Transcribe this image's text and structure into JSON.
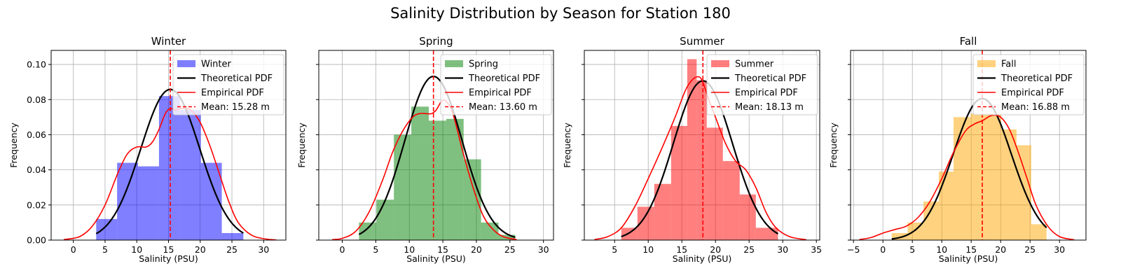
{
  "figure": {
    "title": "Salinity Distribution by Season for Station 180"
  },
  "chart_data": [
    {
      "type": "bar",
      "title": "Winter",
      "xlabel": "Salinity (PSU)",
      "ylabel": "Frequency",
      "xlim": [
        -3.5,
        33.5
      ],
      "ylim": [
        0,
        0.108
      ],
      "xticks": [
        "0",
        "5",
        "10",
        "15",
        "20",
        "25",
        "30"
      ],
      "yticks": [
        "0.00",
        "0.02",
        "0.04",
        "0.06",
        "0.08",
        "0.10"
      ],
      "grid": true,
      "legend_position": "top-right",
      "hist_color": "#0000ff",
      "mean": 15.28,
      "bin_edges": [
        3.6,
        6.9,
        10.2,
        13.5,
        16.8,
        20.1,
        23.4,
        26.8
      ],
      "hist_values": [
        0.012,
        0.044,
        0.042,
        0.082,
        0.074,
        0.044,
        0.004
      ],
      "theoretical_pdf": {
        "mean": 15.28,
        "std": 4.65,
        "range": [
          3.6,
          26.8
        ]
      },
      "empirical_pdf": {
        "x": [
          -1.5,
          1,
          3,
          5,
          7,
          8.5,
          10,
          11.5,
          12.5,
          13.5,
          14.5,
          15.3,
          16,
          17,
          18.5,
          20,
          21.5,
          23,
          24.5,
          26,
          28,
          30,
          32
        ],
        "y": [
          0.0003,
          0.002,
          0.008,
          0.02,
          0.038,
          0.049,
          0.053,
          0.053,
          0.056,
          0.063,
          0.072,
          0.075,
          0.074,
          0.075,
          0.074,
          0.067,
          0.054,
          0.038,
          0.022,
          0.01,
          0.003,
          0.0008,
          0.0001
        ]
      },
      "legend": [
        "Winter",
        "Theoretical PDF",
        "Empirical PDF",
        "Mean: 15.28 m"
      ]
    },
    {
      "type": "bar",
      "title": "Spring",
      "xlabel": "Salinity (PSU)",
      "ylabel": "Frequency",
      "xlim": [
        -3.5,
        31.5
      ],
      "ylim": [
        0,
        0.108
      ],
      "xticks": [
        "0",
        "5",
        "10",
        "15",
        "20",
        "25",
        "30"
      ],
      "yticks": [],
      "grid": true,
      "legend_position": "top-right",
      "hist_color": "#008000",
      "mean": 13.6,
      "bin_edges": [
        2.5,
        5.1,
        7.7,
        10.3,
        12.9,
        15.5,
        18.1,
        20.7,
        23.3,
        25.8
      ],
      "hist_values": [
        0.01,
        0.023,
        0.06,
        0.076,
        0.068,
        0.069,
        0.046,
        0.01,
        0.003
      ],
      "theoretical_pdf": {
        "mean": 13.6,
        "std": 4.28,
        "range": [
          2.5,
          25.8
        ]
      },
      "empirical_pdf": {
        "x": [
          -1.5,
          0,
          2,
          4,
          6,
          7.5,
          9,
          10.5,
          11.5,
          12.5,
          13.3,
          14,
          14.8,
          15.5,
          16.5,
          18,
          19.5,
          21,
          22.5,
          24,
          26
        ],
        "y": [
          0.0003,
          0.001,
          0.005,
          0.016,
          0.034,
          0.05,
          0.062,
          0.07,
          0.072,
          0.072,
          0.072,
          0.074,
          0.079,
          0.079,
          0.072,
          0.05,
          0.03,
          0.014,
          0.006,
          0.002,
          0.0003
        ]
      },
      "legend": [
        "Spring",
        "Theoretical PDF",
        "Empirical PDF",
        "Mean: 13.60 m"
      ]
    },
    {
      "type": "bar",
      "title": "Summer",
      "xlabel": "Salinity (PSU)",
      "ylabel": "Frequency",
      "xlim": [
        0.5,
        35.5
      ],
      "ylim": [
        0,
        0.108
      ],
      "xticks": [
        "5",
        "10",
        "15",
        "20",
        "25",
        "30",
        "35"
      ],
      "yticks": [],
      "grid": true,
      "legend_position": "top-right",
      "hist_color": "#ff0000",
      "mean": 18.13,
      "bin_edges": [
        6,
        8.4,
        10.9,
        13.4,
        15.8,
        17.2,
        18.7,
        21.1,
        23.6,
        26.0,
        29.3
      ],
      "hist_values": [
        0.007,
        0.019,
        0.032,
        0.065,
        0.103,
        0.091,
        0.064,
        0.045,
        0.026,
        0.007
      ],
      "theoretical_pdf": {
        "mean": 18.13,
        "std": 4.4,
        "range": [
          6,
          29.3
        ]
      },
      "empirical_pdf": {
        "x": [
          2,
          4,
          6,
          8,
          10,
          12,
          14,
          15.5,
          16.5,
          17.3,
          18,
          19,
          20,
          21.5,
          23,
          24.5,
          26,
          27.5,
          29,
          31,
          33.5
        ],
        "y": [
          0.0003,
          0.002,
          0.007,
          0.019,
          0.035,
          0.052,
          0.07,
          0.085,
          0.091,
          0.093,
          0.091,
          0.08,
          0.07,
          0.055,
          0.045,
          0.04,
          0.03,
          0.016,
          0.007,
          0.002,
          0.0002
        ]
      },
      "legend": [
        "Summer",
        "Theoretical PDF",
        "Empirical PDF",
        "Mean: 18.13 m"
      ]
    },
    {
      "type": "bar",
      "title": "Fall",
      "xlabel": "Salinity (PSU)",
      "ylabel": "Frequency",
      "xlim": [
        -5.5,
        34.5
      ],
      "ylim": [
        0,
        0.108
      ],
      "xticks": [
        "−5",
        "0",
        "5",
        "10",
        "15",
        "20",
        "25",
        "30"
      ],
      "yticks": [],
      "grid": true,
      "legend_position": "top-right",
      "hist_color": "#ffa500",
      "mean": 16.88,
      "bin_edges": [
        1.5,
        4.2,
        6.9,
        9.5,
        12.0,
        14.9,
        17.5,
        20.1,
        22.7,
        25.2,
        27.8
      ],
      "hist_values": [
        0.004,
        0.01,
        0.022,
        0.039,
        0.07,
        0.072,
        0.072,
        0.063,
        0.054,
        0.009
      ],
      "theoretical_pdf": {
        "mean": 16.88,
        "std": 4.95,
        "range": [
          1.5,
          27.8
        ]
      },
      "empirical_pdf": {
        "x": [
          -4,
          -2,
          0,
          2,
          4,
          6,
          8,
          10,
          12,
          14,
          15.5,
          16.9,
          18.5,
          20,
          21.5,
          23,
          24.5,
          26,
          28,
          30,
          32.5
        ],
        "y": [
          0.0003,
          0.0015,
          0.004,
          0.006,
          0.008,
          0.013,
          0.022,
          0.035,
          0.05,
          0.062,
          0.066,
          0.068,
          0.071,
          0.07,
          0.063,
          0.05,
          0.035,
          0.02,
          0.008,
          0.002,
          0.0002
        ]
      },
      "legend": [
        "Fall",
        "Theoretical PDF",
        "Empirical PDF",
        "Mean: 16.88 m"
      ]
    }
  ]
}
